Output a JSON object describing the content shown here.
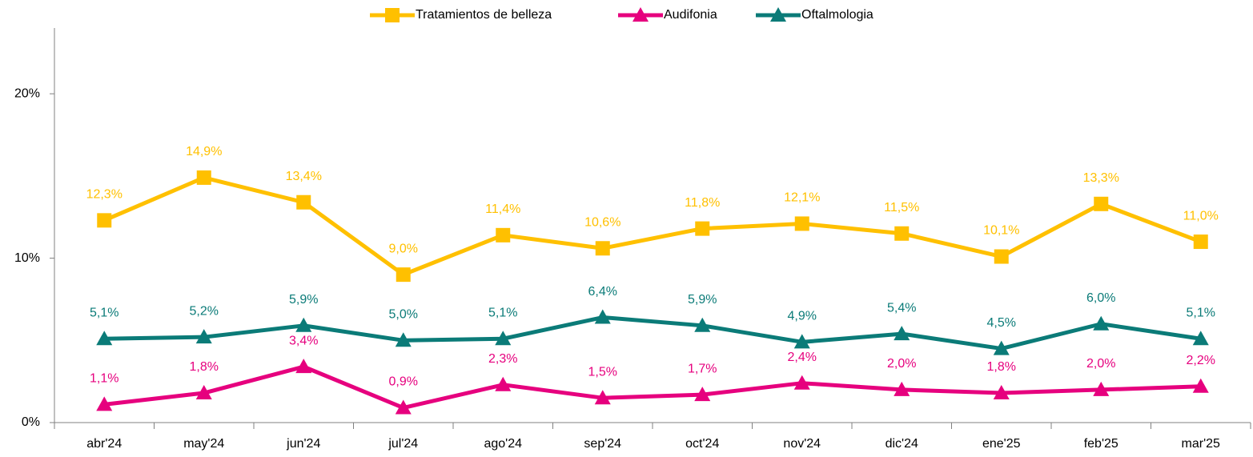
{
  "chart_data": {
    "type": "line",
    "categories": [
      "abr'24",
      "may'24",
      "jun'24",
      "jul'24",
      "ago'24",
      "sep'24",
      "oct'24",
      "nov'24",
      "dic'24",
      "ene'25",
      "feb'25",
      "mar'25"
    ],
    "series": [
      {
        "name": "Tratamientos de belleza",
        "color": "#FFC000",
        "marker": "square",
        "values": [
          12.3,
          14.9,
          13.4,
          9.0,
          11.4,
          10.6,
          11.8,
          12.1,
          11.5,
          10.1,
          13.3,
          11.0
        ],
        "value_labels": [
          "12,3%",
          "14,9%",
          "13,4%",
          "9,0%",
          "11,4%",
          "10,6%",
          "11,8%",
          "12,1%",
          "11,5%",
          "10,1%",
          "13,3%",
          "11,0%"
        ]
      },
      {
        "name": "Audifonia",
        "color": "#E6007E",
        "marker": "triangle",
        "values": [
          1.1,
          1.8,
          3.4,
          0.9,
          2.3,
          1.5,
          1.7,
          2.4,
          2.0,
          1.8,
          2.0,
          2.2
        ],
        "value_labels": [
          "1,1%",
          "1,8%",
          "3,4%",
          "0,9%",
          "2,3%",
          "1,5%",
          "1,7%",
          "2,4%",
          "2,0%",
          "1,8%",
          "2,0%",
          "2,2%"
        ]
      },
      {
        "name": "Oftalmologia",
        "color": "#0B7B78",
        "marker": "triangle",
        "values": [
          5.1,
          5.2,
          5.9,
          5.0,
          5.1,
          6.4,
          5.9,
          4.9,
          5.4,
          4.5,
          6.0,
          5.1
        ],
        "value_labels": [
          "5,1%",
          "5,2%",
          "5,9%",
          "5,0%",
          "5,1%",
          "6,4%",
          "5,9%",
          "4,9%",
          "5,4%",
          "4,5%",
          "6,0%",
          "5,1%"
        ]
      }
    ],
    "ylim": [
      0,
      24
    ],
    "yticks": [
      {
        "value": 0,
        "label": "0%"
      },
      {
        "value": 10,
        "label": "10%"
      },
      {
        "value": 20,
        "label": "20%"
      }
    ],
    "grid": false,
    "legend": "top"
  }
}
